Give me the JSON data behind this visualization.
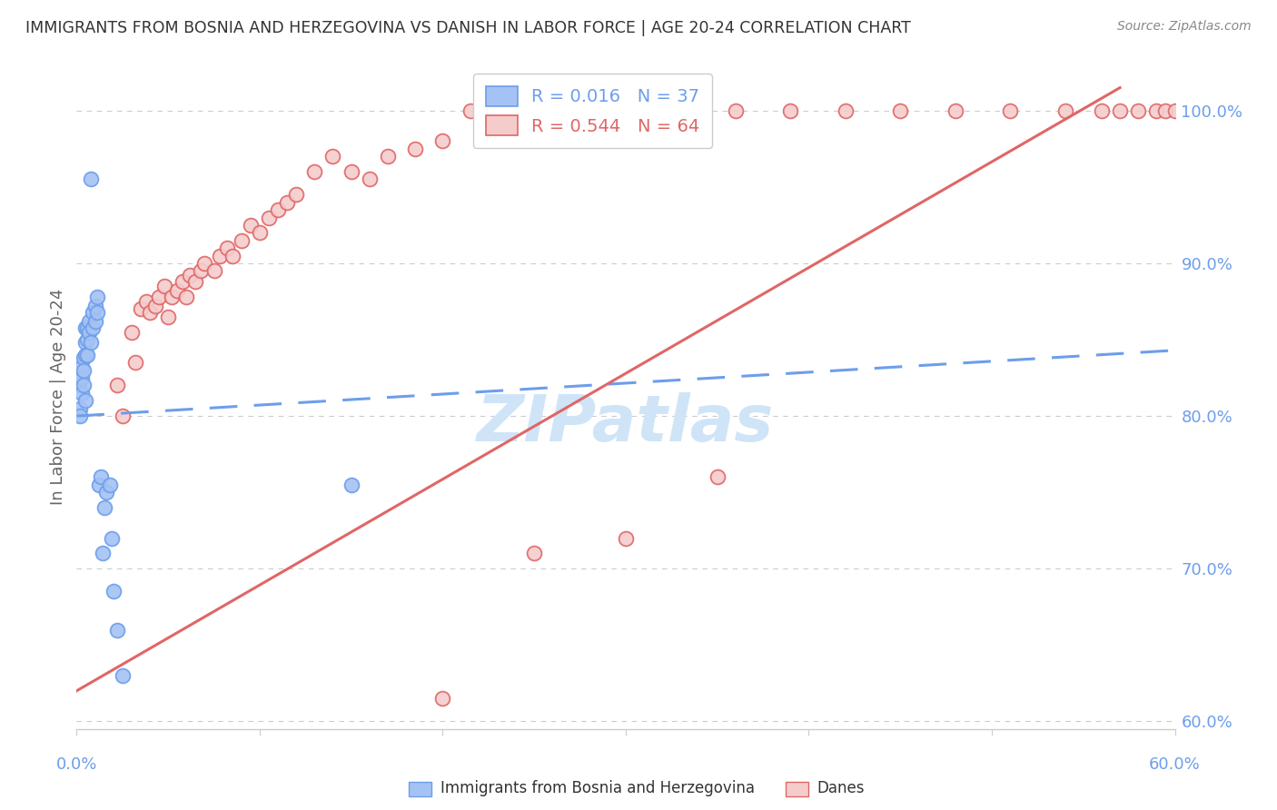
{
  "title": "IMMIGRANTS FROM BOSNIA AND HERZEGOVINA VS DANISH IN LABOR FORCE | AGE 20-24 CORRELATION CHART",
  "source": "Source: ZipAtlas.com",
  "ylabel": "In Labor Force | Age 20-24",
  "legend_blue_r": "R = 0.016",
  "legend_blue_n": "N = 37",
  "legend_pink_r": "R = 0.544",
  "legend_pink_n": "N = 64",
  "blue_fill": "#a4c2f4",
  "blue_edge": "#6d9eeb",
  "pink_fill": "#f4cccc",
  "pink_edge": "#e06666",
  "blue_line_color": "#6d9eeb",
  "pink_line_color": "#e06666",
  "blue_label": "Immigrants from Bosnia and Herzegovina",
  "pink_label": "Danes",
  "title_color": "#333333",
  "source_color": "#888888",
  "axis_label_color": "#6d9eeb",
  "grid_color": "#cccccc",
  "x_min": 0.0,
  "x_max": 0.6,
  "y_min": 0.595,
  "y_max": 1.03,
  "ytick_vals": [
    0.6,
    0.7,
    0.8,
    0.9,
    1.0
  ],
  "ytick_labels": [
    "60.0%",
    "70.0%",
    "80.0%",
    "90.0%",
    "100.0%"
  ],
  "blue_x": [
    0.001,
    0.002,
    0.002,
    0.003,
    0.003,
    0.003,
    0.004,
    0.004,
    0.004,
    0.005,
    0.005,
    0.005,
    0.005,
    0.006,
    0.006,
    0.006,
    0.007,
    0.007,
    0.008,
    0.008,
    0.009,
    0.009,
    0.01,
    0.01,
    0.011,
    0.011,
    0.012,
    0.013,
    0.014,
    0.015,
    0.016,
    0.018,
    0.019,
    0.02,
    0.022,
    0.025,
    0.15
  ],
  "blue_y": [
    0.82,
    0.805,
    0.8,
    0.832,
    0.825,
    0.815,
    0.838,
    0.83,
    0.82,
    0.858,
    0.848,
    0.84,
    0.81,
    0.858,
    0.85,
    0.84,
    0.862,
    0.855,
    0.955,
    0.848,
    0.868,
    0.858,
    0.872,
    0.862,
    0.878,
    0.868,
    0.755,
    0.76,
    0.71,
    0.74,
    0.75,
    0.755,
    0.72,
    0.685,
    0.66,
    0.63,
    0.755
  ],
  "pink_x": [
    0.022,
    0.025,
    0.03,
    0.032,
    0.035,
    0.038,
    0.04,
    0.043,
    0.045,
    0.048,
    0.05,
    0.052,
    0.055,
    0.058,
    0.06,
    0.062,
    0.065,
    0.068,
    0.07,
    0.075,
    0.078,
    0.082,
    0.085,
    0.09,
    0.095,
    0.1,
    0.105,
    0.11,
    0.115,
    0.12,
    0.13,
    0.14,
    0.15,
    0.16,
    0.17,
    0.185,
    0.2,
    0.215,
    0.23,
    0.25,
    0.27,
    0.29,
    0.31,
    0.335,
    0.36,
    0.39,
    0.42,
    0.45,
    0.48,
    0.51,
    0.54,
    0.56,
    0.57,
    0.58,
    0.59,
    0.595,
    0.6,
    0.61,
    0.62,
    0.63,
    0.35,
    0.3,
    0.25,
    0.2
  ],
  "pink_y": [
    0.82,
    0.8,
    0.855,
    0.835,
    0.87,
    0.875,
    0.868,
    0.872,
    0.878,
    0.885,
    0.865,
    0.878,
    0.882,
    0.888,
    0.878,
    0.892,
    0.888,
    0.895,
    0.9,
    0.895,
    0.905,
    0.91,
    0.905,
    0.915,
    0.925,
    0.92,
    0.93,
    0.935,
    0.94,
    0.945,
    0.96,
    0.97,
    0.96,
    0.955,
    0.97,
    0.975,
    0.98,
    1.0,
    1.0,
    1.0,
    1.0,
    1.0,
    1.0,
    1.0,
    1.0,
    1.0,
    1.0,
    1.0,
    1.0,
    1.0,
    1.0,
    1.0,
    1.0,
    1.0,
    1.0,
    1.0,
    1.0,
    1.0,
    1.0,
    1.0,
    0.76,
    0.72,
    0.71,
    0.615
  ],
  "blue_trendline": [
    0.0,
    0.6,
    0.8,
    0.843
  ],
  "pink_trendline": [
    0.0,
    0.57,
    0.62,
    1.015
  ],
  "watermark": "ZIPatlas",
  "watermark_color": "#d0e4f7",
  "watermark_fontsize": 52
}
